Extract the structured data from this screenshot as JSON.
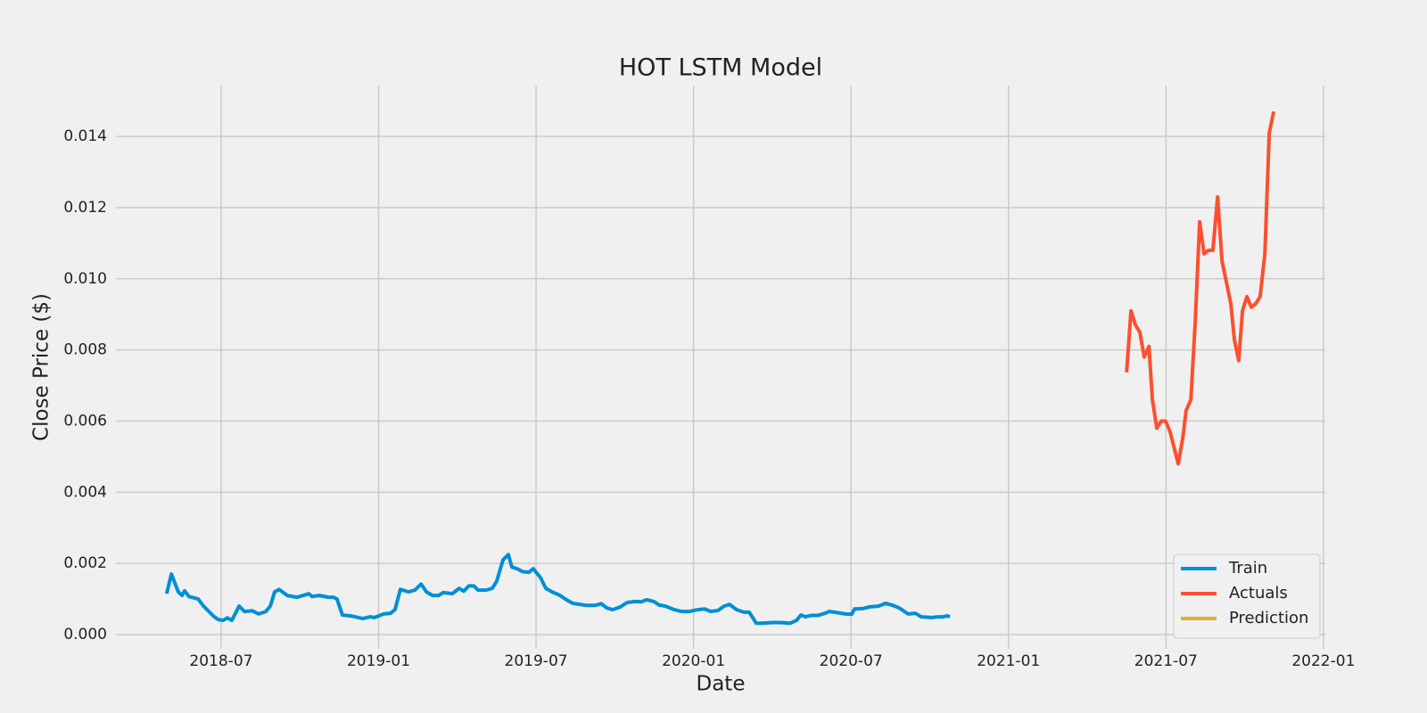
{
  "chart_data": {
    "type": "line",
    "title": "HOT LSTM Model",
    "x_label": "Date",
    "y_label": "Close Price ($)",
    "xlim": [
      2018.166,
      2022.006
    ],
    "ylim": [
      -0.0004,
      0.01543
    ],
    "xticks": [
      {
        "value": 2018.5,
        "label": "2018-07"
      },
      {
        "value": 2019.0,
        "label": "2019-01"
      },
      {
        "value": 2019.5,
        "label": "2019-07"
      },
      {
        "value": 2020.0,
        "label": "2020-01"
      },
      {
        "value": 2020.5,
        "label": "2020-07"
      },
      {
        "value": 2021.0,
        "label": "2021-01"
      },
      {
        "value": 2021.5,
        "label": "2021-07"
      },
      {
        "value": 2022.0,
        "label": "2022-01"
      }
    ],
    "yticks": [
      {
        "value": 0,
        "label": "0.000"
      },
      {
        "value": 0.002,
        "label": "0.002"
      },
      {
        "value": 0.004,
        "label": "0.004"
      },
      {
        "value": 0.006,
        "label": "0.006"
      },
      {
        "value": 0.008,
        "label": "0.008"
      },
      {
        "value": 0.01,
        "label": "0.010"
      },
      {
        "value": 0.012,
        "label": "0.012"
      },
      {
        "value": 0.014,
        "label": "0.014"
      }
    ],
    "grid": true,
    "legend_position": "lower-right",
    "series": [
      {
        "name": "Train",
        "color": "#008fd5",
        "x": [
          2018.327,
          2018.342,
          2018.364,
          2018.376,
          2018.384,
          2018.398,
          2018.427,
          2018.444,
          2018.478,
          2018.492,
          2018.506,
          2018.52,
          2018.534,
          2018.557,
          2018.574,
          2018.599,
          2018.619,
          2018.642,
          2018.656,
          2018.67,
          2018.684,
          2018.71,
          2018.741,
          2018.761,
          2018.778,
          2018.789,
          2018.812,
          2018.84,
          2018.857,
          2018.868,
          2018.885,
          2018.916,
          2018.95,
          2018.973,
          2018.987,
          2019.016,
          2019.038,
          2019.052,
          2019.069,
          2019.095,
          2019.115,
          2019.135,
          2019.152,
          2019.171,
          2019.191,
          2019.205,
          2019.234,
          2019.256,
          2019.27,
          2019.287,
          2019.302,
          2019.316,
          2019.341,
          2019.361,
          2019.375,
          2019.395,
          2019.412,
          2019.423,
          2019.44,
          2019.457,
          2019.477,
          2019.491,
          2019.514,
          2019.531,
          2019.551,
          2019.576,
          2019.596,
          2019.616,
          2019.639,
          2019.658,
          2019.687,
          2019.707,
          2019.724,
          2019.743,
          2019.766,
          2019.789,
          2019.814,
          2019.834,
          2019.851,
          2019.874,
          2019.891,
          2019.911,
          2019.939,
          2019.962,
          2019.987,
          2020.013,
          2020.035,
          2020.055,
          2020.078,
          2020.097,
          2020.114,
          2020.137,
          2020.16,
          2020.177,
          2020.199,
          2020.219,
          2020.248,
          2020.276,
          2020.307,
          2020.327,
          2020.341,
          2020.355,
          2020.375,
          2020.395,
          2020.418,
          2020.431,
          2020.454,
          2020.483,
          2020.502,
          2020.511,
          2020.536,
          2020.559,
          2020.587,
          2020.61,
          2020.63,
          2020.653,
          2020.681,
          2020.704,
          2020.723,
          2020.757,
          2020.777,
          2020.794,
          2020.805,
          2020.814
        ],
        "values": [
          0.00115,
          0.0017,
          0.0012,
          0.0011,
          0.00123,
          0.00107,
          0.001,
          0.0008,
          0.0005,
          0.00042,
          0.0004,
          0.00047,
          0.0004,
          0.0008,
          0.00065,
          0.00067,
          0.00058,
          0.00065,
          0.0008,
          0.0012,
          0.00127,
          0.0011,
          0.00105,
          0.0011,
          0.00115,
          0.00107,
          0.0011,
          0.00105,
          0.00105,
          0.001,
          0.00055,
          0.00052,
          0.00045,
          0.0005,
          0.00048,
          0.00058,
          0.0006,
          0.0007,
          0.00127,
          0.0012,
          0.00125,
          0.00142,
          0.0012,
          0.0011,
          0.0011,
          0.00118,
          0.00115,
          0.0013,
          0.00122,
          0.00137,
          0.00137,
          0.00125,
          0.00125,
          0.0013,
          0.0015,
          0.0021,
          0.00225,
          0.0019,
          0.00185,
          0.00177,
          0.00175,
          0.00185,
          0.0016,
          0.0013,
          0.0012,
          0.0011,
          0.00098,
          0.00088,
          0.00085,
          0.00082,
          0.00082,
          0.00087,
          0.00075,
          0.0007,
          0.00077,
          0.0009,
          0.00093,
          0.00092,
          0.00098,
          0.00093,
          0.00083,
          0.0008,
          0.0007,
          0.00065,
          0.00065,
          0.0007,
          0.00072,
          0.00065,
          0.00068,
          0.0008,
          0.00085,
          0.0007,
          0.00063,
          0.00063,
          0.00032,
          0.00032,
          0.00034,
          0.00034,
          0.00032,
          0.0004,
          0.00055,
          0.0005,
          0.00054,
          0.00054,
          0.0006,
          0.00065,
          0.00062,
          0.00058,
          0.00057,
          0.00072,
          0.00073,
          0.00078,
          0.0008,
          0.00088,
          0.00083,
          0.00075,
          0.00058,
          0.0006,
          0.0005,
          0.00048,
          0.0005,
          0.0005,
          0.00053,
          0.0005
        ]
      },
      {
        "name": "Actuals",
        "color": "#fc4f30",
        "x": [
          2021.375,
          2021.389,
          2021.403,
          2021.417,
          2021.431,
          2021.446,
          2021.457,
          2021.471,
          2021.485,
          2021.499,
          2021.513,
          2021.539,
          2021.553,
          2021.564,
          2021.579,
          2021.593,
          2021.607,
          2021.621,
          2021.635,
          2021.649,
          2021.664,
          2021.678,
          2021.706,
          2021.717,
          2021.731,
          2021.743,
          2021.757,
          2021.771,
          2021.785,
          2021.799,
          2021.814,
          2021.828,
          2021.842
        ],
        "values": [
          0.00737,
          0.0091,
          0.0087,
          0.0085,
          0.0078,
          0.0081,
          0.0066,
          0.0058,
          0.006,
          0.006,
          0.0057,
          0.0048,
          0.0055,
          0.0063,
          0.0066,
          0.0088,
          0.0116,
          0.0107,
          0.0108,
          0.0108,
          0.0123,
          0.0105,
          0.0093,
          0.0083,
          0.0077,
          0.0091,
          0.0095,
          0.0092,
          0.0093,
          0.0095,
          0.0107,
          0.0141,
          0.0147
        ]
      },
      {
        "name": "Prediction",
        "color": "#e5ae38",
        "x": [],
        "values": []
      }
    ]
  }
}
